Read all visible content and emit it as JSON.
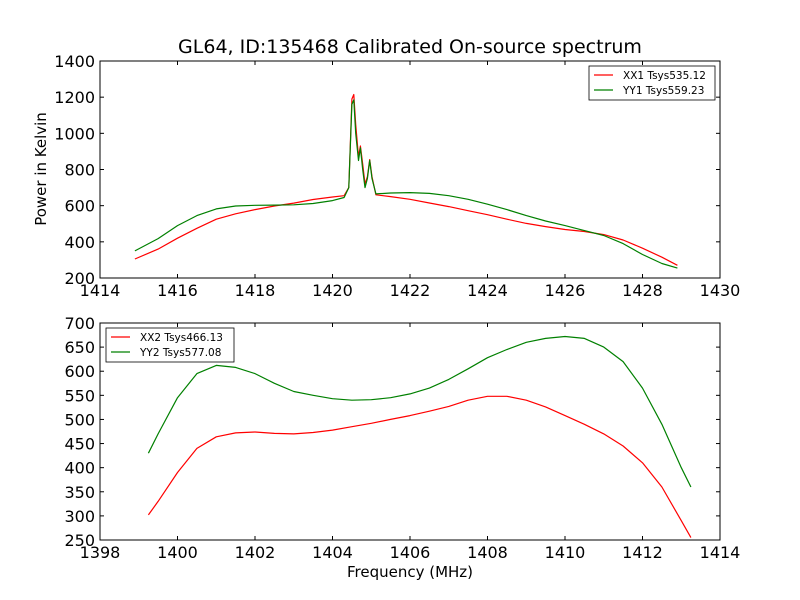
{
  "chart_data": [
    {
      "type": "line",
      "title": "GL64, ID:135468 Calibrated On-source spectrum",
      "xlabel": "",
      "ylabel": "Power in Kelvin",
      "xlim": [
        1414,
        1430
      ],
      "ylim": [
        200,
        1400
      ],
      "xticks": [
        "1414",
        "1416",
        "1418",
        "1420",
        "1422",
        "1424",
        "1426",
        "1428",
        "1430"
      ],
      "yticks": [
        "200",
        "400",
        "600",
        "800",
        "1000",
        "1200",
        "1400"
      ],
      "grid": false,
      "legend_position": "top-right",
      "series": [
        {
          "name": "XX1 Tsys535.12",
          "color": "#ff0000",
          "points": [
            [
              1414.9,
              305
            ],
            [
              1415.5,
              360
            ],
            [
              1416.0,
              420
            ],
            [
              1416.5,
              475
            ],
            [
              1417.0,
              525
            ],
            [
              1417.5,
              555
            ],
            [
              1418.0,
              578
            ],
            [
              1418.5,
              598
            ],
            [
              1419.0,
              614
            ],
            [
              1419.5,
              634
            ],
            [
              1420.0,
              648
            ],
            [
              1420.3,
              655
            ],
            [
              1420.42,
              700
            ],
            [
              1420.5,
              1190
            ],
            [
              1420.55,
              1215
            ],
            [
              1420.6,
              1050
            ],
            [
              1420.67,
              870
            ],
            [
              1420.72,
              930
            ],
            [
              1420.78,
              830
            ],
            [
              1420.84,
              720
            ],
            [
              1420.9,
              760
            ],
            [
              1420.96,
              855
            ],
            [
              1421.02,
              760
            ],
            [
              1421.12,
              660
            ],
            [
              1421.5,
              650
            ],
            [
              1422.0,
              635
            ],
            [
              1422.5,
              615
            ],
            [
              1423.0,
              595
            ],
            [
              1423.5,
              572
            ],
            [
              1424.0,
              550
            ],
            [
              1424.5,
              525
            ],
            [
              1425.0,
              502
            ],
            [
              1425.5,
              484
            ],
            [
              1426.0,
              468
            ],
            [
              1426.5,
              457
            ],
            [
              1427.0,
              440
            ],
            [
              1427.5,
              410
            ],
            [
              1428.0,
              365
            ],
            [
              1428.5,
              315
            ],
            [
              1428.9,
              270
            ]
          ]
        },
        {
          "name": "YY1 Tsys559.23",
          "color": "#008000",
          "points": [
            [
              1414.9,
              350
            ],
            [
              1415.5,
              418
            ],
            [
              1416.0,
              490
            ],
            [
              1416.5,
              545
            ],
            [
              1417.0,
              582
            ],
            [
              1417.5,
              598
            ],
            [
              1418.0,
              602
            ],
            [
              1418.5,
              603
            ],
            [
              1419.0,
              605
            ],
            [
              1419.5,
              612
            ],
            [
              1420.0,
              628
            ],
            [
              1420.3,
              645
            ],
            [
              1420.42,
              700
            ],
            [
              1420.5,
              1160
            ],
            [
              1420.55,
              1185
            ],
            [
              1420.6,
              1000
            ],
            [
              1420.67,
              850
            ],
            [
              1420.72,
              920
            ],
            [
              1420.78,
              800
            ],
            [
              1420.84,
              700
            ],
            [
              1420.9,
              750
            ],
            [
              1420.96,
              850
            ],
            [
              1421.02,
              750
            ],
            [
              1421.12,
              665
            ],
            [
              1421.5,
              670
            ],
            [
              1422.0,
              672
            ],
            [
              1422.5,
              668
            ],
            [
              1423.0,
              655
            ],
            [
              1423.5,
              635
            ],
            [
              1424.0,
              608
            ],
            [
              1424.5,
              578
            ],
            [
              1425.0,
              545
            ],
            [
              1425.5,
              515
            ],
            [
              1426.0,
              490
            ],
            [
              1426.5,
              462
            ],
            [
              1427.0,
              435
            ],
            [
              1427.5,
              390
            ],
            [
              1428.0,
              330
            ],
            [
              1428.5,
              280
            ],
            [
              1428.9,
              255
            ]
          ]
        }
      ]
    },
    {
      "type": "line",
      "title": "",
      "xlabel": "Frequency (MHz)",
      "ylabel": "",
      "xlim": [
        1398,
        1414
      ],
      "ylim": [
        250,
        700
      ],
      "xticks": [
        "1398",
        "1400",
        "1402",
        "1404",
        "1406",
        "1408",
        "1410",
        "1412",
        "1414"
      ],
      "yticks": [
        "250",
        "300",
        "350",
        "400",
        "450",
        "500",
        "550",
        "600",
        "650",
        "700"
      ],
      "grid": false,
      "legend_position": "top-left",
      "series": [
        {
          "name": "XX2 Tsys466.13",
          "color": "#ff0000",
          "points": [
            [
              1399.25,
              302
            ],
            [
              1399.5,
              330
            ],
            [
              1400.0,
              390
            ],
            [
              1400.5,
              440
            ],
            [
              1401.0,
              464
            ],
            [
              1401.5,
              472
            ],
            [
              1402.0,
              474
            ],
            [
              1402.5,
              471
            ],
            [
              1403.0,
              470
            ],
            [
              1403.5,
              473
            ],
            [
              1404.0,
              478
            ],
            [
              1404.5,
              485
            ],
            [
              1405.0,
              492
            ],
            [
              1405.5,
              500
            ],
            [
              1406.0,
              508
            ],
            [
              1406.5,
              517
            ],
            [
              1407.0,
              527
            ],
            [
              1407.5,
              540
            ],
            [
              1408.0,
              548
            ],
            [
              1408.5,
              548
            ],
            [
              1409.0,
              540
            ],
            [
              1409.5,
              526
            ],
            [
              1410.0,
              508
            ],
            [
              1410.5,
              490
            ],
            [
              1411.0,
              470
            ],
            [
              1411.5,
              445
            ],
            [
              1412.0,
              410
            ],
            [
              1412.5,
              360
            ],
            [
              1413.0,
              290
            ],
            [
              1413.25,
              255
            ]
          ]
        },
        {
          "name": "YY2 Tsys577.08",
          "color": "#008000",
          "points": [
            [
              1399.25,
              430
            ],
            [
              1399.5,
              470
            ],
            [
              1400.0,
              545
            ],
            [
              1400.5,
              595
            ],
            [
              1401.0,
              612
            ],
            [
              1401.5,
              608
            ],
            [
              1402.0,
              595
            ],
            [
              1402.5,
              575
            ],
            [
              1403.0,
              558
            ],
            [
              1403.5,
              550
            ],
            [
              1404.0,
              543
            ],
            [
              1404.5,
              540
            ],
            [
              1405.0,
              541
            ],
            [
              1405.5,
              545
            ],
            [
              1406.0,
              553
            ],
            [
              1406.5,
              565
            ],
            [
              1407.0,
              583
            ],
            [
              1407.5,
              605
            ],
            [
              1408.0,
              628
            ],
            [
              1408.5,
              645
            ],
            [
              1409.0,
              660
            ],
            [
              1409.5,
              668
            ],
            [
              1410.0,
              672
            ],
            [
              1410.5,
              668
            ],
            [
              1411.0,
              650
            ],
            [
              1411.5,
              620
            ],
            [
              1412.0,
              565
            ],
            [
              1412.5,
              490
            ],
            [
              1413.0,
              400
            ],
            [
              1413.25,
              360
            ]
          ]
        }
      ]
    }
  ]
}
